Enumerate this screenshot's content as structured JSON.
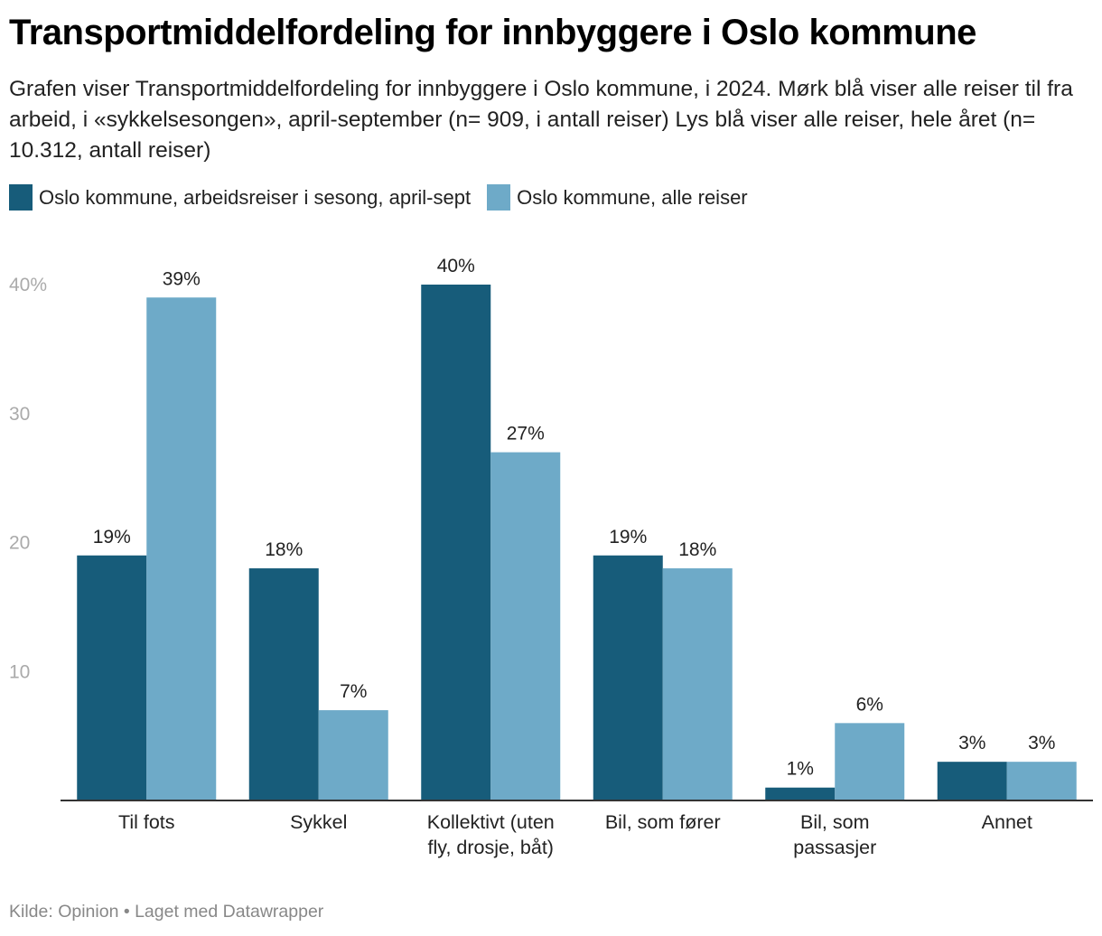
{
  "header": {
    "title": "Transportmiddelfordeling for innbyggere i Oslo kommune",
    "subtitle": "Grafen viser Transportmiddelfordeling for innbyggere i Oslo kommune, i 2024. Mørk blå viser alle reiser til fra arbeid, i «sykkelsesongen», april-september (n= 909, i antall reiser) Lys blå viser alle reiser, hele året (n= 10.312, antall reiser)"
  },
  "legend": [
    {
      "label": "Oslo kommune, arbeidsreiser i sesong, april-sept",
      "color": "#175c7a"
    },
    {
      "label": "Oslo kommune, alle reiser",
      "color": "#6eaac8"
    }
  ],
  "footer": {
    "text": "Kilde: Opinion • Laget med Datawrapper"
  },
  "chart_data": {
    "type": "bar",
    "title": "Transportmiddelfordeling for innbyggere i Oslo kommune",
    "xlabel": "",
    "ylabel": "",
    "ylim": [
      0,
      40
    ],
    "yticks": [
      10,
      20,
      30,
      40
    ],
    "ytick_labels": [
      "10",
      "20",
      "30",
      "40%"
    ],
    "grid": false,
    "legend_position": "top-left",
    "categories": [
      [
        "Til fots"
      ],
      [
        "Sykkel"
      ],
      [
        "Kollektivt (uten",
        "fly, drosje, båt)"
      ],
      [
        "Bil, som fører"
      ],
      [
        "Bil, som",
        "passasjer"
      ],
      [
        "Annet"
      ]
    ],
    "series": [
      {
        "name": "Oslo kommune, arbeidsreiser i sesong, april-sept",
        "color": "#175c7a",
        "values": [
          19,
          18,
          40,
          19,
          1,
          3
        ],
        "labels": [
          "19%",
          "18%",
          "40%",
          "19%",
          "1%",
          "3%"
        ]
      },
      {
        "name": "Oslo kommune, alle reiser",
        "color": "#6eaac8",
        "values": [
          39,
          7,
          27,
          18,
          6,
          3
        ],
        "labels": [
          "39%",
          "7%",
          "27%",
          "18%",
          "6%",
          "3%"
        ]
      }
    ]
  }
}
